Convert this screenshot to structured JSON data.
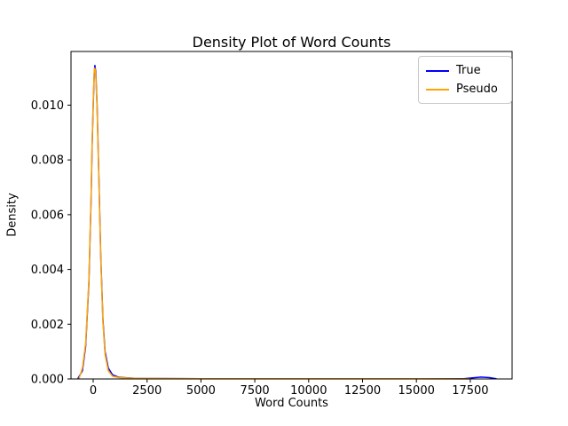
{
  "chart_data": {
    "type": "line",
    "title": "Density Plot of Word Counts",
    "xlabel": "Word Counts",
    "ylabel": "Density",
    "xlim": [
      -1030,
      19440
    ],
    "ylim": [
      0,
      0.01196
    ],
    "xticks": [
      0,
      2500,
      5000,
      7500,
      10000,
      12500,
      15000,
      17500
    ],
    "yticks": [
      0.0,
      0.002,
      0.004,
      0.006,
      0.008,
      0.01
    ],
    "grid": false,
    "legend_position": "upper right",
    "series": [
      {
        "name": "True",
        "color": "#0000ff",
        "x": [
          -700,
          -500,
          -350,
          -200,
          -100,
          -50,
          0,
          50,
          80,
          120,
          180,
          250,
          350,
          450,
          550,
          700,
          900,
          1200,
          2000,
          5000,
          10000,
          15000,
          17200,
          17600,
          18000,
          18400,
          18700
        ],
        "y": [
          3e-05,
          0.0003,
          0.0012,
          0.0035,
          0.0065,
          0.0085,
          0.01,
          0.0112,
          0.01145,
          0.0112,
          0.01,
          0.0078,
          0.0045,
          0.0022,
          0.001,
          0.0004,
          0.00015,
          6e-05,
          2e-05,
          1e-05,
          1e-05,
          1e-05,
          1e-05,
          4e-05,
          7e-05,
          5e-05,
          1e-05
        ]
      },
      {
        "name": "Pseudo",
        "color": "#ffa500",
        "x": [
          -650,
          -500,
          -350,
          -200,
          -100,
          -50,
          0,
          50,
          80,
          120,
          180,
          250,
          350,
          450,
          550,
          700,
          900,
          1200,
          2000,
          5000,
          10000,
          15000,
          17500
        ],
        "y": [
          3e-05,
          0.0004,
          0.0013,
          0.0036,
          0.0066,
          0.0086,
          0.0101,
          0.0113,
          0.01135,
          0.0111,
          0.0099,
          0.0077,
          0.0044,
          0.0021,
          0.0009,
          0.0003,
          0.0001,
          5e-05,
          2e-05,
          1e-05,
          1e-05,
          1e-05,
          0.0
        ]
      }
    ]
  }
}
